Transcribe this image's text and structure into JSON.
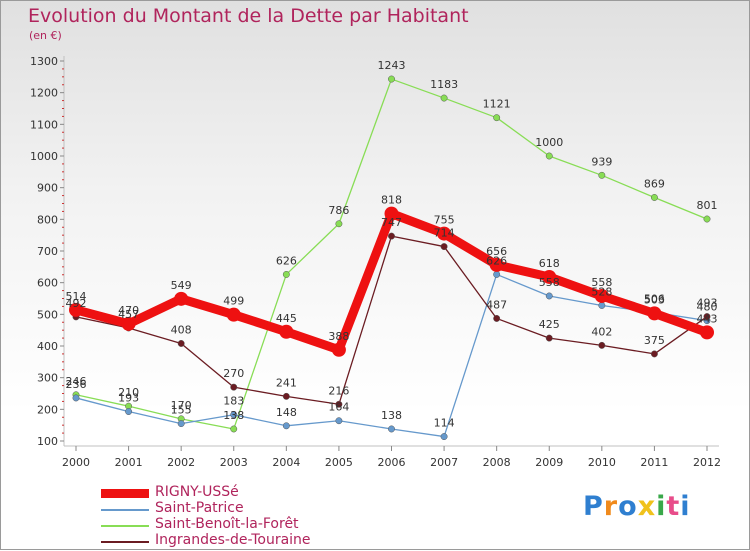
{
  "chart_data": {
    "type": "line",
    "title": "Evolution du Montant de la Dette par Habitant",
    "subtitle": "(en €)",
    "x": [
      "2000",
      "2001",
      "2002",
      "2003",
      "2004",
      "2005",
      "2006",
      "2007",
      "2008",
      "2009",
      "2010",
      "2011",
      "2012"
    ],
    "ylim": [
      100,
      1300
    ],
    "yticks": [
      100,
      200,
      300,
      400,
      500,
      600,
      700,
      800,
      900,
      1000,
      1100,
      1200,
      1300
    ],
    "grid": false,
    "legend_position": "bottom-left",
    "series": [
      {
        "name": "RIGNY-USSé",
        "color": "#ee1111",
        "values": [
          514,
          470,
          549,
          499,
          445,
          388,
          818,
          755,
          656,
          618,
          558,
          503,
          443
        ]
      },
      {
        "name": "Saint-Patrice",
        "color": "#6699cc",
        "values": [
          236,
          193,
          155,
          183,
          148,
          164,
          138,
          114,
          626,
          558,
          528,
          506,
          480
        ]
      },
      {
        "name": "Saint-Benoît-la-Forêt",
        "color": "#88dd55",
        "values": [
          246,
          210,
          170,
          138,
          626,
          786,
          1243,
          1183,
          1121,
          1000,
          939,
          869,
          801
        ]
      },
      {
        "name": "Ingrandes-de-Touraine",
        "color": "#6b1c22",
        "values": [
          492,
          457,
          408,
          270,
          241,
          216,
          747,
          714,
          487,
          425,
          402,
          375,
          493
        ]
      }
    ]
  },
  "logo": {
    "letters": [
      "P",
      "r",
      "o",
      "x",
      "i",
      "t",
      "i"
    ],
    "colors": [
      "#2f7fd0",
      "#f08a1c",
      "#2f7fd0",
      "#f0c21c",
      "#3aa84a",
      "#e84d8a",
      "#2f7fd0"
    ]
  }
}
